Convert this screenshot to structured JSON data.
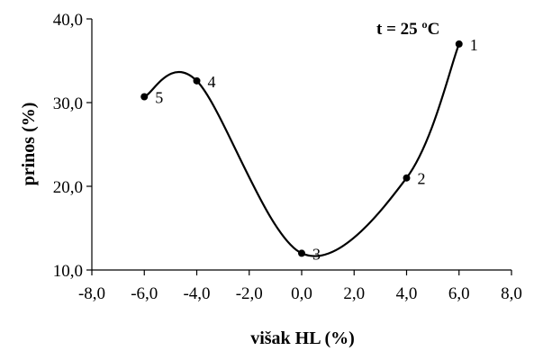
{
  "chart_data": {
    "type": "line",
    "title": "",
    "xlabel": "višak HL (%)",
    "ylabel": "prinos (%)",
    "annotation": "t = 25 ºC",
    "xlim": [
      -8,
      8
    ],
    "ylim": [
      10,
      40
    ],
    "x_ticks": [
      "-8,0",
      "-6,0",
      "-4,0",
      "-2,0",
      "0,0",
      "2,0",
      "4,0",
      "6,0",
      "8,0"
    ],
    "y_ticks": [
      "10,0",
      "20,0",
      "30,0",
      "40,0"
    ],
    "grid": false,
    "legend": "none",
    "series": [
      {
        "points": [
          {
            "label": "1",
            "x": 6,
            "y": 37
          },
          {
            "label": "2",
            "x": 4,
            "y": 21
          },
          {
            "label": "3",
            "x": 0,
            "y": 12
          },
          {
            "label": "4",
            "x": -4,
            "y": 32.6
          },
          {
            "label": "5",
            "x": -6,
            "y": 30.7
          }
        ]
      }
    ],
    "curve_color": "#000000"
  }
}
